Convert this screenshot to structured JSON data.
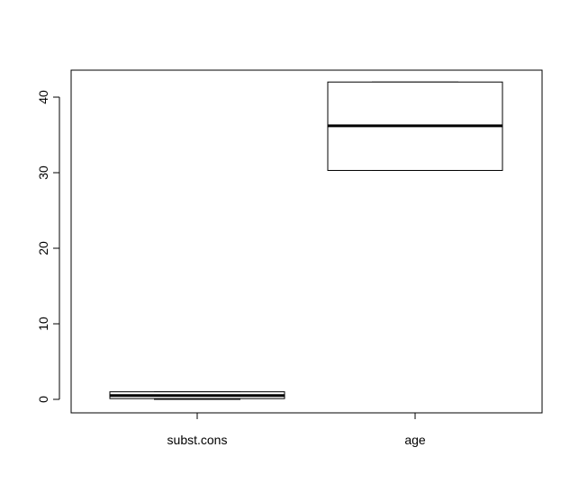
{
  "chart_data": {
    "type": "box",
    "title": "",
    "xlabel": "",
    "ylabel": "",
    "ylim": [
      -1.5,
      45.5
    ],
    "yticks": [
      0,
      10,
      20,
      30,
      40
    ],
    "ytick_labels": [
      "0",
      "10",
      "20",
      "30",
      "40"
    ],
    "categories": [
      "subst.cons",
      "age"
    ],
    "boxes": [
      {
        "name": "subst.cons",
        "min": 0,
        "q1": 0.1,
        "median": 0.5,
        "q3": 1.0,
        "max": 1.0
      },
      {
        "name": "age",
        "min": 30.3,
        "q1": 30.3,
        "median": 36.2,
        "q3": 42.0,
        "max": 42.0
      }
    ],
    "colors": {
      "stroke": "#000000",
      "fill": "#ffffff"
    },
    "grid": false,
    "legend": "none"
  }
}
